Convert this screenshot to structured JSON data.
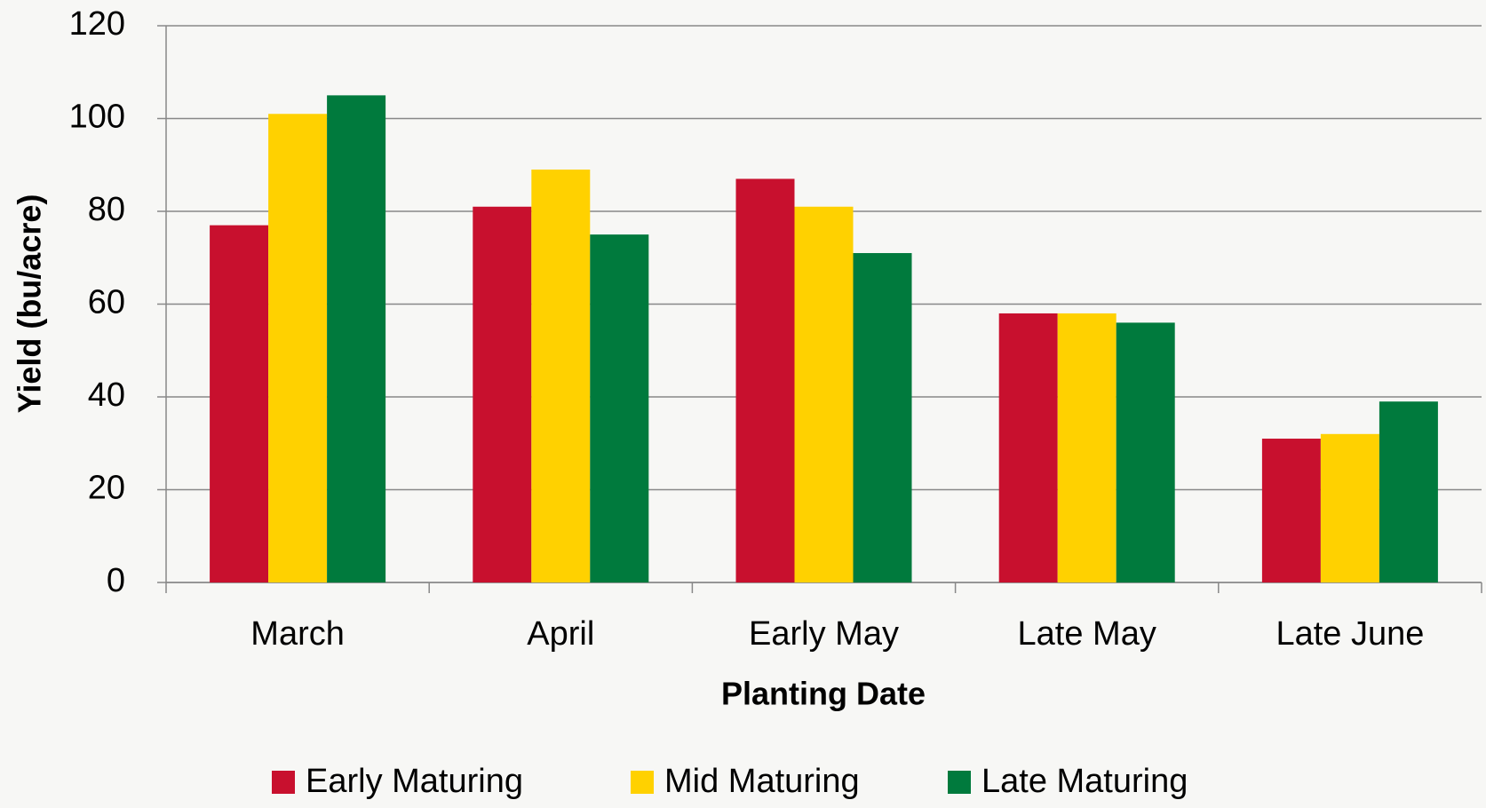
{
  "chart_data": {
    "type": "bar",
    "x_label": "Planting Date",
    "y_label": "Yield (bu/acre)",
    "categories": [
      "March",
      "April",
      "Early May",
      "Late May",
      "Late June"
    ],
    "series": [
      {
        "name": "Early Maturing",
        "color": "#c8102e",
        "values": [
          77,
          81,
          87,
          58,
          31
        ]
      },
      {
        "name": "Mid Maturing",
        "color": "#ffd100",
        "values": [
          101,
          89,
          81,
          58,
          32
        ]
      },
      {
        "name": "Late Maturing",
        "color": "#007a3d",
        "values": [
          105,
          75,
          71,
          56,
          39
        ]
      }
    ],
    "ylim": [
      0,
      120
    ],
    "yticks": [
      0,
      20,
      40,
      60,
      80,
      100,
      120
    ],
    "grid": true,
    "legend": "bottom"
  }
}
